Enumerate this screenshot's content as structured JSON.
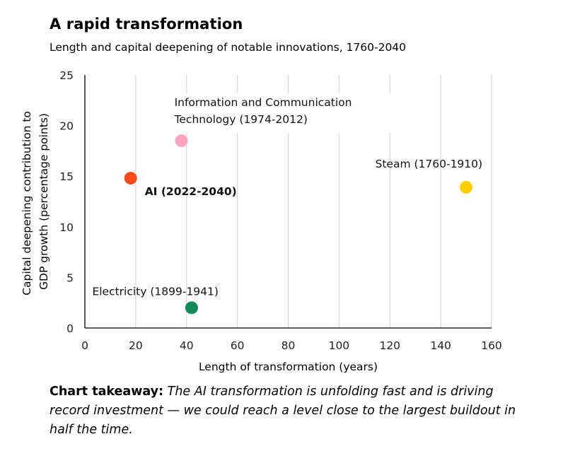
{
  "header": {
    "title": "A rapid transformation",
    "subtitle": "Length and capital deepening of notable innovations, 1760-2040"
  },
  "chart_data": {
    "type": "scatter",
    "title": "A rapid transformation",
    "subtitle": "Length and capital deepening of notable innovations, 1760-2040",
    "xlabel": "Length of transformation (years)",
    "ylabel_lines": [
      "Capital deepening contribution to",
      "GDP growth (percentage points)"
    ],
    "xlim": [
      0,
      160
    ],
    "ylim": [
      0,
      25
    ],
    "xticks": [
      0,
      20,
      40,
      60,
      80,
      100,
      120,
      140,
      160
    ],
    "yticks": [
      0,
      5,
      10,
      15,
      20,
      25
    ],
    "grid": "vertical",
    "points": [
      {
        "label": "AI (2022-2040)",
        "x": 18,
        "y": 14.8,
        "color": "#ff4a1c",
        "bold": true,
        "label_lines": [
          "AI (2022-2040)"
        ]
      },
      {
        "label": "Information and Communication Technology (1974-2012)",
        "x": 38,
        "y": 18.5,
        "color": "#ffa3c1",
        "bold": false,
        "label_lines": [
          "Information and Communication",
          "Technology (1974-2012)"
        ]
      },
      {
        "label": "Steam (1760-1910)",
        "x": 150,
        "y": 13.9,
        "color": "#ffce00",
        "bold": false,
        "label_lines": [
          "Steam (1760-1910)"
        ]
      },
      {
        "label": "Electricity (1899-1941)",
        "x": 42,
        "y": 2.0,
        "color": "#12895a",
        "bold": false,
        "label_lines": [
          "Electricity (1899-1941)"
        ]
      }
    ]
  },
  "takeaway": {
    "lead": "Chart takeaway:",
    "body": "The AI transformation is unfolding fast and is driving record investment — we could reach a level close to the largest buildout in half the time."
  }
}
